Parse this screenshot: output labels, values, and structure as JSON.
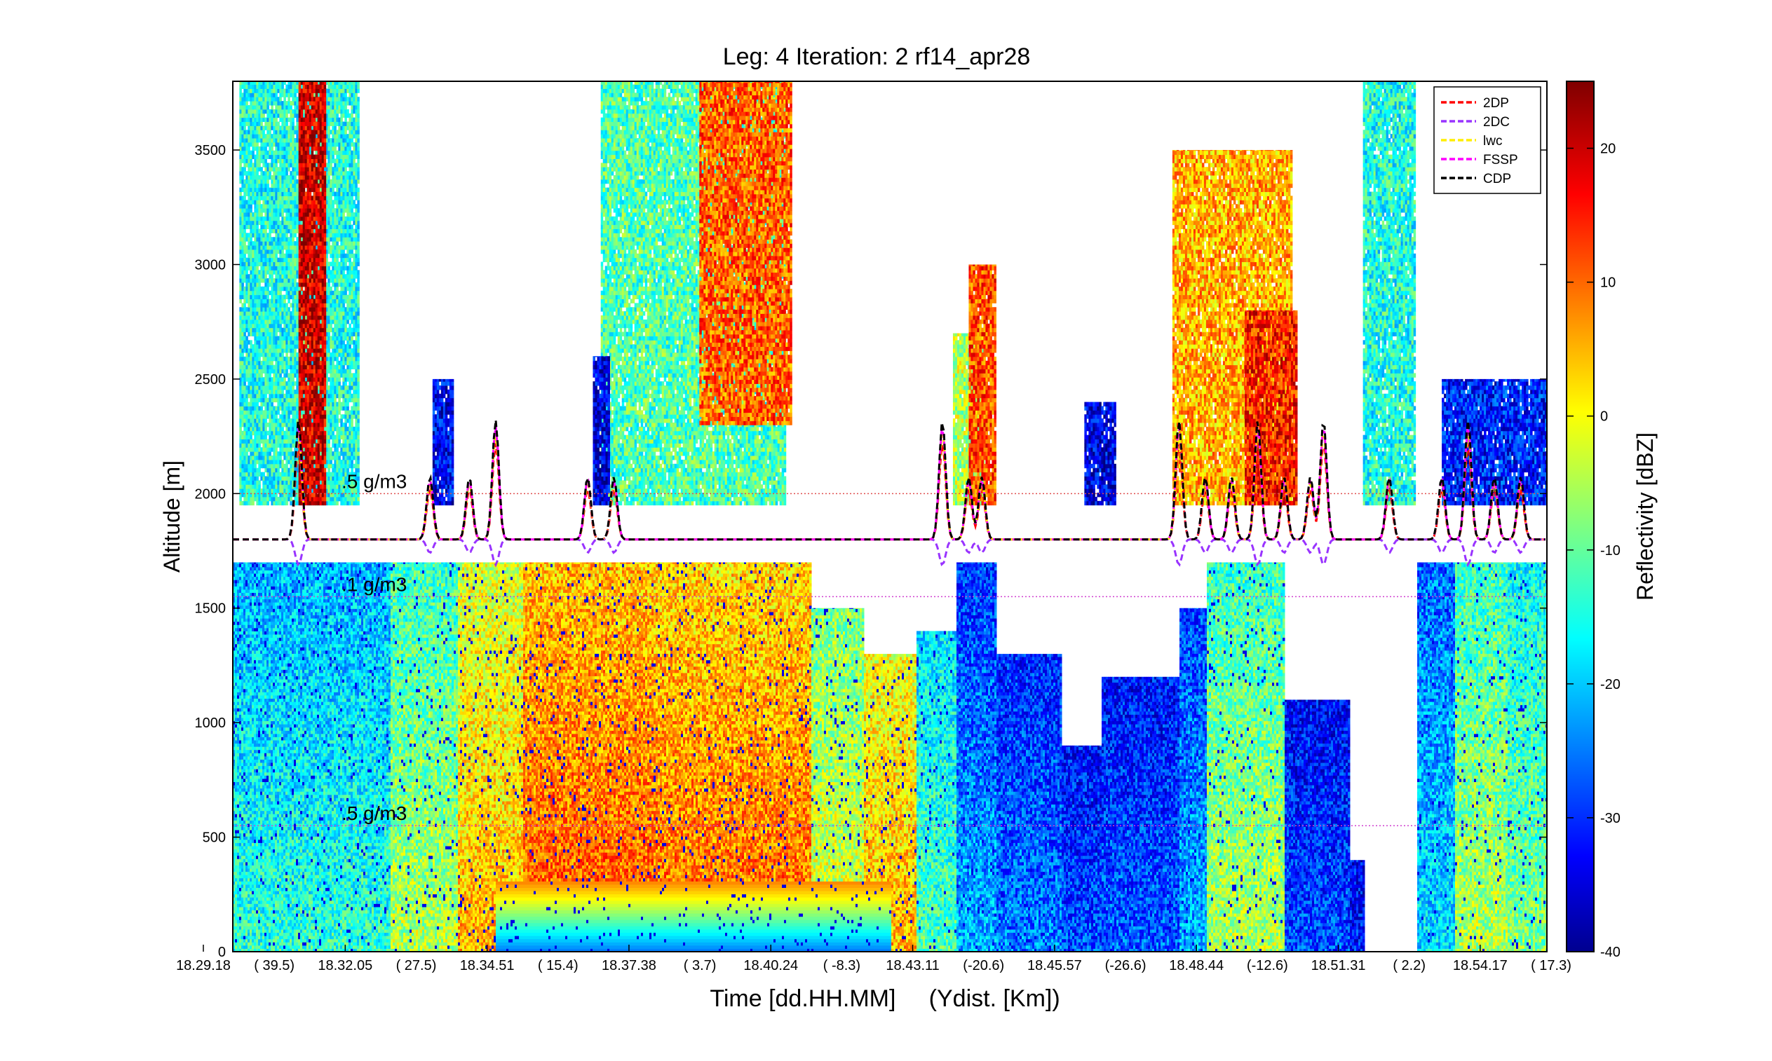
{
  "chart_data": [
    {
      "type": "heatmap",
      "title": "Leg: 4  Iteration: 2  rf14_apr28",
      "xlabel": "Time [dd.HH.MM]     (Ydist. [Km])",
      "ylabel": "Altitude [m]",
      "ylim": [
        0,
        3800
      ],
      "y_ticks": [
        0,
        500,
        1000,
        1500,
        2000,
        2500,
        3000,
        3500
      ],
      "x_tick_labels": [
        "18.29.18",
        "( 39.5)",
        "18.32.05",
        "( 27.5)",
        "18.34.51",
        "( 15.4)",
        "18.37.38",
        "( 3.7)",
        "18.40.24",
        "( -8.3)",
        "18.43.11",
        "(-20.6)",
        "18.45.57",
        "(-26.6)",
        "18.48.44",
        "(-12.6)",
        "18.51.31",
        "( 2.2)",
        "18.54.17",
        "( 17.3)"
      ],
      "colorbar": {
        "label": "Reflectivity [dBZ]",
        "range": [
          -40,
          25
        ],
        "ticks": [
          -40,
          -30,
          -20,
          -10,
          0,
          10,
          20
        ]
      },
      "reference_lines": [
        {
          "label": ".5 g/m3",
          "altitude": 2000,
          "color": "#e05050"
        },
        {
          "label": ".1 g/m3",
          "altitude": 1550,
          "color": "#d040d0"
        },
        {
          "label": ".5 g/m3",
          "altitude": 550,
          "color": "#d040d0"
        }
      ],
      "flight_altitude": 1800,
      "legend_position": "top-right",
      "legend": [
        {
          "name": "2DP",
          "color": "#ff0000"
        },
        {
          "name": "2DC",
          "color": "#9933ff"
        },
        {
          "name": "lwc",
          "color": "#ffee00"
        },
        {
          "name": "FSSP",
          "color": "#ff00ff"
        },
        {
          "name": "CDP",
          "color": "#000000"
        }
      ],
      "x_range": [
        0,
        1
      ]
    }
  ]
}
